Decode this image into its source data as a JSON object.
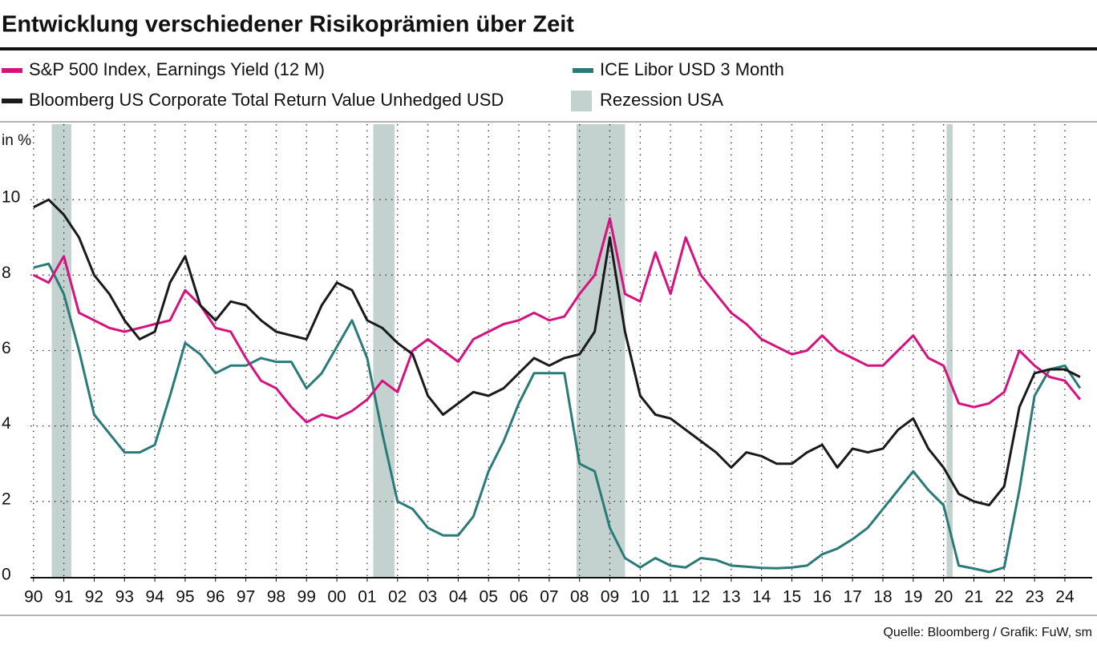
{
  "chart_data": {
    "type": "line",
    "title": "Entwicklung verschiedener Risikoprämien über Zeit",
    "y_label": "in %",
    "source": "Quelle: Bloomberg / Grafik: FuW, sm",
    "x": [
      1990.0,
      1990.5,
      1991.0,
      1991.5,
      1992.0,
      1992.5,
      1993.0,
      1993.5,
      1994.0,
      1994.5,
      1995.0,
      1995.5,
      1996.0,
      1996.5,
      1997.0,
      1997.5,
      1998.0,
      1998.5,
      1999.0,
      1999.5,
      2000.0,
      2000.5,
      2001.0,
      2001.5,
      2002.0,
      2002.5,
      2003.0,
      2003.5,
      2004.0,
      2004.5,
      2005.0,
      2005.5,
      2006.0,
      2006.5,
      2007.0,
      2007.5,
      2008.0,
      2008.5,
      2009.0,
      2009.5,
      2010.0,
      2010.5,
      2011.0,
      2011.5,
      2012.0,
      2012.5,
      2013.0,
      2013.5,
      2014.0,
      2014.5,
      2015.0,
      2015.5,
      2016.0,
      2016.5,
      2017.0,
      2017.5,
      2018.0,
      2018.5,
      2019.0,
      2019.5,
      2020.0,
      2020.5,
      2021.0,
      2021.5,
      2022.0,
      2022.5,
      2023.0,
      2023.5,
      2024.0,
      2024.5
    ],
    "series": [
      {
        "name": "S&P 500 Index, Earnings Yield (12 M)",
        "color": "#d6127e",
        "values": [
          8.0,
          7.8,
          8.5,
          7.0,
          6.8,
          6.6,
          6.5,
          6.6,
          6.7,
          6.8,
          7.6,
          7.2,
          6.6,
          6.5,
          5.8,
          5.2,
          5.0,
          4.5,
          4.1,
          4.3,
          4.2,
          4.4,
          4.7,
          5.2,
          4.9,
          6.0,
          6.3,
          6.0,
          5.7,
          6.3,
          6.5,
          6.7,
          6.8,
          7.0,
          6.8,
          6.9,
          7.5,
          8.0,
          9.5,
          7.5,
          7.3,
          8.6,
          7.5,
          9.0,
          8.0,
          7.5,
          7.0,
          6.7,
          6.3,
          6.1,
          5.9,
          6.0,
          6.4,
          6.0,
          5.8,
          5.6,
          5.6,
          6.0,
          6.4,
          5.8,
          5.6,
          4.6,
          4.5,
          4.6,
          4.9,
          6.0,
          5.6,
          5.3,
          5.2,
          4.7
        ]
      },
      {
        "name": "Bloomberg US Corporate Total Return Value Unhedged USD",
        "color": "#1a1a1a",
        "values": [
          9.8,
          10.0,
          9.6,
          9.0,
          8.0,
          7.5,
          6.8,
          6.3,
          6.5,
          7.8,
          8.5,
          7.2,
          6.8,
          7.3,
          7.2,
          6.8,
          6.5,
          6.4,
          6.3,
          7.2,
          7.8,
          7.6,
          6.8,
          6.6,
          6.2,
          5.9,
          4.8,
          4.3,
          4.6,
          4.9,
          4.8,
          5.0,
          5.4,
          5.8,
          5.6,
          5.8,
          5.9,
          6.5,
          9.0,
          6.5,
          4.8,
          4.3,
          4.2,
          3.9,
          3.6,
          3.3,
          2.9,
          3.3,
          3.2,
          3.0,
          3.0,
          3.3,
          3.5,
          2.9,
          3.4,
          3.3,
          3.4,
          3.9,
          4.2,
          3.4,
          2.9,
          2.2,
          2.0,
          1.9,
          2.4,
          4.5,
          5.4,
          5.5,
          5.5,
          5.3
        ]
      },
      {
        "name": "ICE Libor USD 3 Month",
        "color": "#2a7b78",
        "values": [
          8.2,
          8.3,
          7.5,
          6.0,
          4.3,
          3.8,
          3.3,
          3.3,
          3.5,
          4.8,
          6.2,
          5.9,
          5.4,
          5.6,
          5.6,
          5.8,
          5.7,
          5.7,
          5.0,
          5.4,
          6.1,
          6.8,
          5.8,
          3.8,
          2.0,
          1.8,
          1.3,
          1.1,
          1.1,
          1.6,
          2.8,
          3.6,
          4.6,
          5.4,
          5.4,
          5.4,
          3.0,
          2.8,
          1.3,
          0.5,
          0.25,
          0.5,
          0.3,
          0.25,
          0.5,
          0.45,
          0.3,
          0.27,
          0.24,
          0.23,
          0.25,
          0.3,
          0.6,
          0.75,
          1.0,
          1.3,
          1.8,
          2.3,
          2.8,
          2.3,
          1.9,
          0.3,
          0.22,
          0.13,
          0.25,
          2.3,
          4.8,
          5.5,
          5.6,
          5.0
        ]
      }
    ],
    "recessions": {
      "name": "Rezession USA",
      "color": "#c3d2cf",
      "periods": [
        [
          1990.6,
          1991.25
        ],
        [
          2001.2,
          2001.9
        ],
        [
          2007.9,
          2009.5
        ],
        [
          2020.1,
          2020.3
        ]
      ]
    },
    "xlim": [
      1989.9,
      2024.9
    ],
    "xticks": [
      {
        "value": 1990,
        "label": "90"
      },
      {
        "value": 1991,
        "label": "91"
      },
      {
        "value": 1992,
        "label": "92"
      },
      {
        "value": 1993,
        "label": "93"
      },
      {
        "value": 1994,
        "label": "94"
      },
      {
        "value": 1995,
        "label": "95"
      },
      {
        "value": 1996,
        "label": "96"
      },
      {
        "value": 1997,
        "label": "97"
      },
      {
        "value": 1998,
        "label": "98"
      },
      {
        "value": 1999,
        "label": "99"
      },
      {
        "value": 2000,
        "label": "00"
      },
      {
        "value": 2001,
        "label": "01"
      },
      {
        "value": 2002,
        "label": "02"
      },
      {
        "value": 2003,
        "label": "03"
      },
      {
        "value": 2004,
        "label": "04"
      },
      {
        "value": 2005,
        "label": "05"
      },
      {
        "value": 2006,
        "label": "06"
      },
      {
        "value": 2007,
        "label": "07"
      },
      {
        "value": 2008,
        "label": "08"
      },
      {
        "value": 2009,
        "label": "09"
      },
      {
        "value": 2010,
        "label": "10"
      },
      {
        "value": 2011,
        "label": "11"
      },
      {
        "value": 2012,
        "label": "12"
      },
      {
        "value": 2013,
        "label": "13"
      },
      {
        "value": 2014,
        "label": "14"
      },
      {
        "value": 2015,
        "label": "15"
      },
      {
        "value": 2016,
        "label": "16"
      },
      {
        "value": 2017,
        "label": "17"
      },
      {
        "value": 2018,
        "label": "18"
      },
      {
        "value": 2019,
        "label": "19"
      },
      {
        "value": 2020,
        "label": "20"
      },
      {
        "value": 2021,
        "label": "21"
      },
      {
        "value": 2022,
        "label": "22"
      },
      {
        "value": 2023,
        "label": "23"
      },
      {
        "value": 2024,
        "label": "24"
      }
    ],
    "ylim": [
      0,
      12
    ],
    "yticks": [
      0,
      2,
      4,
      6,
      8,
      10
    ],
    "grid": true
  }
}
